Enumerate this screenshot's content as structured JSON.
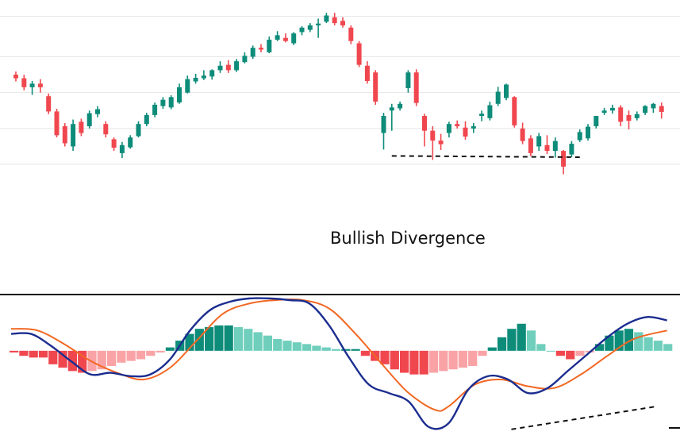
{
  "colors": {
    "bull": "#0e8c7a",
    "bear": "#f0474f",
    "hist_pos_strong": "#0e8c7a",
    "hist_pos_weak": "#6fcfbc",
    "hist_neg_strong": "#f0474f",
    "hist_neg_weak": "#f9a3a6",
    "macd_line": "#1b2d8f",
    "signal_line": "#f26722",
    "grid": "#e6e6e6",
    "divider": "#111111"
  },
  "chart_data": [
    {
      "type": "candlestick",
      "title": "",
      "annotation": "Bullish Divergence",
      "grid": true,
      "legend": "none",
      "ylim": [
        60,
        600
      ],
      "candles": [
        {
          "o": 460,
          "h": 467,
          "l": 445,
          "c": 452
        },
        {
          "o": 452,
          "h": 460,
          "l": 425,
          "c": 432
        },
        {
          "o": 432,
          "h": 446,
          "l": 415,
          "c": 440
        },
        {
          "o": 440,
          "h": 450,
          "l": 420,
          "c": 432
        },
        {
          "o": 412,
          "h": 418,
          "l": 372,
          "c": 378
        },
        {
          "o": 378,
          "h": 384,
          "l": 320,
          "c": 325
        },
        {
          "o": 345,
          "h": 352,
          "l": 300,
          "c": 307
        },
        {
          "o": 300,
          "h": 360,
          "l": 290,
          "c": 350
        },
        {
          "o": 355,
          "h": 362,
          "l": 323,
          "c": 330
        },
        {
          "o": 345,
          "h": 380,
          "l": 340,
          "c": 374
        },
        {
          "o": 372,
          "h": 390,
          "l": 365,
          "c": 383
        },
        {
          "o": 350,
          "h": 356,
          "l": 320,
          "c": 327
        },
        {
          "o": 316,
          "h": 320,
          "l": 290,
          "c": 297
        },
        {
          "o": 285,
          "h": 310,
          "l": 274,
          "c": 303
        },
        {
          "o": 298,
          "h": 325,
          "l": 295,
          "c": 320
        },
        {
          "o": 323,
          "h": 356,
          "l": 320,
          "c": 350
        },
        {
          "o": 350,
          "h": 375,
          "l": 345,
          "c": 370
        },
        {
          "o": 370,
          "h": 398,
          "l": 365,
          "c": 393
        },
        {
          "o": 390,
          "h": 410,
          "l": 384,
          "c": 404
        },
        {
          "o": 387,
          "h": 414,
          "l": 383,
          "c": 410
        },
        {
          "o": 398,
          "h": 440,
          "l": 395,
          "c": 432
        },
        {
          "o": 420,
          "h": 458,
          "l": 418,
          "c": 450
        },
        {
          "o": 445,
          "h": 462,
          "l": 440,
          "c": 453
        },
        {
          "o": 452,
          "h": 470,
          "l": 448,
          "c": 458
        },
        {
          "o": 456,
          "h": 472,
          "l": 449,
          "c": 470
        },
        {
          "o": 470,
          "h": 490,
          "l": 464,
          "c": 480
        },
        {
          "o": 482,
          "h": 492,
          "l": 464,
          "c": 470
        },
        {
          "o": 470,
          "h": 495,
          "l": 466,
          "c": 490
        },
        {
          "o": 488,
          "h": 510,
          "l": 485,
          "c": 502
        },
        {
          "o": 500,
          "h": 525,
          "l": 495,
          "c": 520
        },
        {
          "o": 520,
          "h": 528,
          "l": 510,
          "c": 516
        },
        {
          "o": 510,
          "h": 545,
          "l": 508,
          "c": 538
        },
        {
          "o": 538,
          "h": 557,
          "l": 535,
          "c": 548
        },
        {
          "o": 542,
          "h": 552,
          "l": 532,
          "c": 535
        },
        {
          "o": 530,
          "h": 555,
          "l": 526,
          "c": 552
        },
        {
          "o": 555,
          "h": 568,
          "l": 548,
          "c": 565
        },
        {
          "o": 560,
          "h": 575,
          "l": 555,
          "c": 570
        },
        {
          "o": 570,
          "h": 585,
          "l": 542,
          "c": 574
        },
        {
          "o": 578,
          "h": 598,
          "l": 575,
          "c": 592
        },
        {
          "o": 588,
          "h": 598,
          "l": 570,
          "c": 575
        },
        {
          "o": 580,
          "h": 588,
          "l": 565,
          "c": 570
        },
        {
          "o": 565,
          "h": 570,
          "l": 528,
          "c": 535
        },
        {
          "o": 530,
          "h": 535,
          "l": 477,
          "c": 482
        },
        {
          "o": 480,
          "h": 490,
          "l": 440,
          "c": 446
        },
        {
          "o": 465,
          "h": 470,
          "l": 393,
          "c": 400
        },
        {
          "o": 330,
          "h": 375,
          "l": 293,
          "c": 368
        },
        {
          "o": 380,
          "h": 395,
          "l": 335,
          "c": 387
        },
        {
          "o": 385,
          "h": 400,
          "l": 380,
          "c": 395
        },
        {
          "o": 430,
          "h": 470,
          "l": 420,
          "c": 465
        },
        {
          "o": 465,
          "h": 472,
          "l": 390,
          "c": 397
        },
        {
          "o": 368,
          "h": 373,
          "l": 300,
          "c": 335
        },
        {
          "o": 335,
          "h": 345,
          "l": 270,
          "c": 313
        },
        {
          "o": 313,
          "h": 328,
          "l": 292,
          "c": 305
        },
        {
          "o": 330,
          "h": 355,
          "l": 320,
          "c": 350
        },
        {
          "o": 350,
          "h": 358,
          "l": 340,
          "c": 345
        },
        {
          "o": 342,
          "h": 356,
          "l": 315,
          "c": 322
        },
        {
          "o": 340,
          "h": 352,
          "l": 330,
          "c": 345
        },
        {
          "o": 368,
          "h": 380,
          "l": 356,
          "c": 373
        },
        {
          "o": 363,
          "h": 400,
          "l": 358,
          "c": 392
        },
        {
          "o": 395,
          "h": 433,
          "l": 390,
          "c": 422
        },
        {
          "o": 408,
          "h": 440,
          "l": 403,
          "c": 438
        },
        {
          "o": 410,
          "h": 412,
          "l": 342,
          "c": 347
        },
        {
          "o": 340,
          "h": 353,
          "l": 305,
          "c": 312
        },
        {
          "o": 318,
          "h": 325,
          "l": 278,
          "c": 285
        },
        {
          "o": 300,
          "h": 330,
          "l": 290,
          "c": 323
        },
        {
          "o": 303,
          "h": 325,
          "l": 283,
          "c": 290
        },
        {
          "o": 290,
          "h": 320,
          "l": 275,
          "c": 312
        },
        {
          "o": 290,
          "h": 292,
          "l": 238,
          "c": 255
        },
        {
          "o": 282,
          "h": 312,
          "l": 276,
          "c": 306
        },
        {
          "o": 314,
          "h": 338,
          "l": 310,
          "c": 332
        },
        {
          "o": 318,
          "h": 350,
          "l": 313,
          "c": 344
        },
        {
          "o": 345,
          "h": 368,
          "l": 340,
          "c": 368
        },
        {
          "o": 375,
          "h": 386,
          "l": 370,
          "c": 380
        },
        {
          "o": 380,
          "h": 393,
          "l": 373,
          "c": 386
        },
        {
          "o": 387,
          "h": 392,
          "l": 345,
          "c": 355
        },
        {
          "o": 370,
          "h": 380,
          "l": 338,
          "c": 357
        },
        {
          "o": 363,
          "h": 378,
          "l": 358,
          "c": 372
        },
        {
          "o": 375,
          "h": 392,
          "l": 370,
          "c": 390
        },
        {
          "o": 385,
          "h": 397,
          "l": 375,
          "c": 395
        },
        {
          "o": 390,
          "h": 398,
          "l": 362,
          "c": 377
        }
      ]
    },
    {
      "type": "macd",
      "title": "",
      "grid": false,
      "legend": "none",
      "ylim": [
        -48,
        30
      ],
      "histogram": [
        -1,
        -3,
        -4,
        -4,
        -8,
        -10,
        -12,
        -13,
        -12,
        -11,
        -9,
        -7,
        -6,
        -5,
        -3,
        -1,
        2,
        6,
        10,
        13,
        14,
        15,
        15,
        14,
        13,
        11,
        9,
        7,
        6,
        5,
        4,
        3,
        2,
        1,
        1,
        1,
        -3,
        -6,
        -8,
        -11,
        -13,
        -14,
        -14,
        -13,
        -12,
        -11,
        -10,
        -9,
        -3,
        2,
        8,
        13,
        16,
        12,
        4,
        0,
        -3,
        -5,
        -3,
        -1,
        4,
        9,
        12,
        13,
        11,
        8,
        6,
        4
      ],
      "histogram_x_start": 0,
      "histogram_x_step": 1.0,
      "macd": [
        [
          0,
          10
        ],
        [
          3,
          10
        ],
        [
          6,
          3
        ],
        [
          9,
          -6
        ],
        [
          12,
          -14
        ],
        [
          15,
          -13
        ],
        [
          18,
          -15
        ],
        [
          21,
          -14
        ],
        [
          24,
          -5
        ],
        [
          27,
          12
        ],
        [
          30,
          24
        ],
        [
          33,
          29
        ],
        [
          36,
          31
        ],
        [
          39,
          31
        ],
        [
          42,
          30
        ],
        [
          45,
          28
        ],
        [
          48,
          15
        ],
        [
          51,
          -4
        ],
        [
          54,
          -20
        ],
        [
          57,
          -25
        ],
        [
          60,
          -30
        ],
        [
          63,
          -45
        ],
        [
          66,
          -43
        ],
        [
          69,
          -23
        ],
        [
          72,
          -15
        ],
        [
          75,
          -17
        ],
        [
          78,
          -25
        ],
        [
          81,
          -22
        ],
        [
          84,
          -12
        ],
        [
          87,
          -2
        ],
        [
          90,
          8
        ],
        [
          93,
          16
        ],
        [
          96,
          20
        ],
        [
          99,
          18
        ]
      ],
      "signal": [
        [
          0,
          13
        ],
        [
          4,
          12
        ],
        [
          8,
          4
        ],
        [
          12,
          -6
        ],
        [
          16,
          -13
        ],
        [
          20,
          -17
        ],
        [
          24,
          -10
        ],
        [
          28,
          6
        ],
        [
          32,
          22
        ],
        [
          36,
          28
        ],
        [
          40,
          30
        ],
        [
          44,
          30
        ],
        [
          48,
          25
        ],
        [
          52,
          10
        ],
        [
          56,
          -8
        ],
        [
          60,
          -25
        ],
        [
          64,
          -35
        ],
        [
          66,
          -33
        ],
        [
          70,
          -20
        ],
        [
          74,
          -17
        ],
        [
          78,
          -21
        ],
        [
          82,
          -22
        ],
        [
          86,
          -14
        ],
        [
          90,
          -3
        ],
        [
          94,
          7
        ],
        [
          99,
          12
        ]
      ],
      "macd_divergence_line": {
        "from": [
          75.5,
          -46.5
        ],
        "to": [
          97.3,
          -33
        ]
      }
    }
  ]
}
